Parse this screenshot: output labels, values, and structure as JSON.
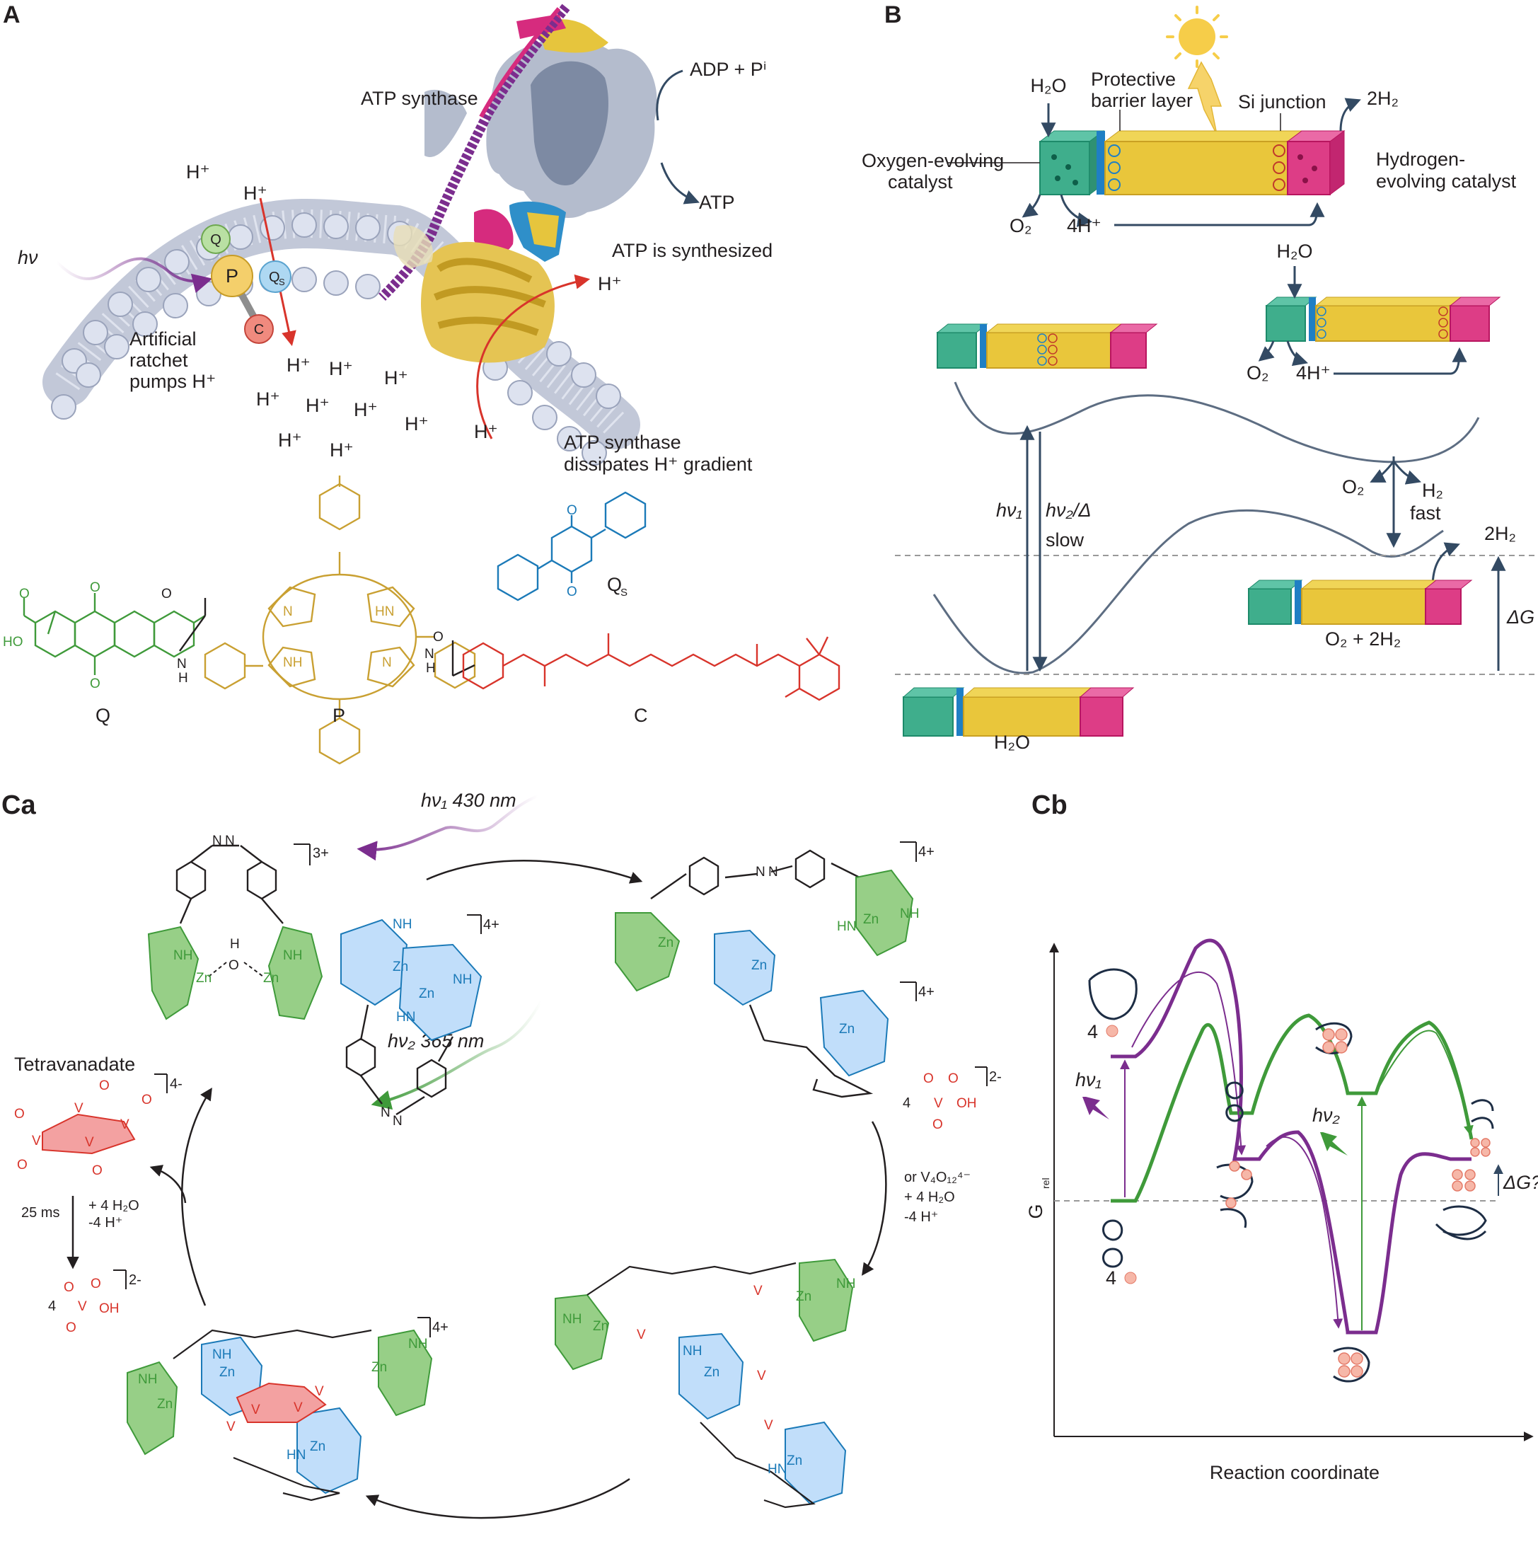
{
  "panels": {
    "a": "A",
    "b": "B",
    "ca": "Ca",
    "cb": "Cb"
  },
  "panel_a": {
    "hv": "hν",
    "ratchet": [
      "Artificial",
      "ratchet",
      "pumps H⁺"
    ],
    "atp_synthase": "ATP synthase",
    "adp": "ADP + Pⁱ",
    "atp": "ATP",
    "atp_synth": "ATP is synthesized",
    "dissipates": [
      "ATP synthase",
      "dissipates H⁺ gradient"
    ],
    "hplus": "H⁺",
    "ratchet_nodes": {
      "q": "Q",
      "p": "P",
      "qs": "Qs",
      "c": "C"
    },
    "molecule_labels": {
      "q": "Q",
      "p": "P",
      "c": "C",
      "qs": "Qs"
    },
    "chem": {
      "hn": "HN",
      "nh": "NH",
      "n": "N",
      "h": "H",
      "o": "O",
      "ho": "HO"
    }
  },
  "panel_b": {
    "h2o": "H₂O",
    "protective": [
      "Protective",
      "barrier layer"
    ],
    "si_junction": "Si junction",
    "two_h2": "2H₂",
    "oec": [
      "Oxygen-evolving",
      "catalyst"
    ],
    "hec": [
      "Hydrogen-",
      "evolving catalyst"
    ],
    "o2": "O₂",
    "four_h": "4H⁺",
    "hv1": "hν₁",
    "hv2_delta": "hν₂/Δ",
    "slow": "slow",
    "h2": "H₂",
    "fast": "fast",
    "delta_g": "ΔG",
    "products": "O₂ + 2H₂",
    "reactant": "H₂O"
  },
  "panel_ca": {
    "hv1": "hν₁ 430 nm",
    "hv2": "hν₂ 365 nm",
    "tetravanadate": "Tetravanadate",
    "time": "25 ms",
    "add_water": [
      "+ 4 H₂O",
      "-4 H⁺"
    ],
    "four": "4",
    "right_cond": [
      "or V₄O₁₂⁴⁻",
      "+ 4 H₂O",
      "-4 H⁺"
    ],
    "charges": {
      "c3": "3+",
      "c4": "4+",
      "c4m": "4-",
      "c2m": "2-"
    },
    "atoms": {
      "zn": "Zn",
      "nh": "NH",
      "hn": "HN",
      "n": "N",
      "h": "H",
      "o": "O",
      "v": "V",
      "oh": "OH"
    }
  },
  "panel_cb": {
    "ylabel": "G_rel",
    "xlabel": "Reaction coordinate",
    "hv1": "hν₁",
    "hv2": "hν₂",
    "delta_g": "ΔG?",
    "four": "4"
  },
  "colors": {
    "purple": "#7b2d8e",
    "green": "#3f9a3a",
    "gold": "#d4a52a",
    "red": "#d8342b",
    "blue": "#1b7ab8",
    "navy": "#334a63",
    "teal": "#2fa58a",
    "yellow": "#e7c43b",
    "magenta": "#d6247b"
  }
}
